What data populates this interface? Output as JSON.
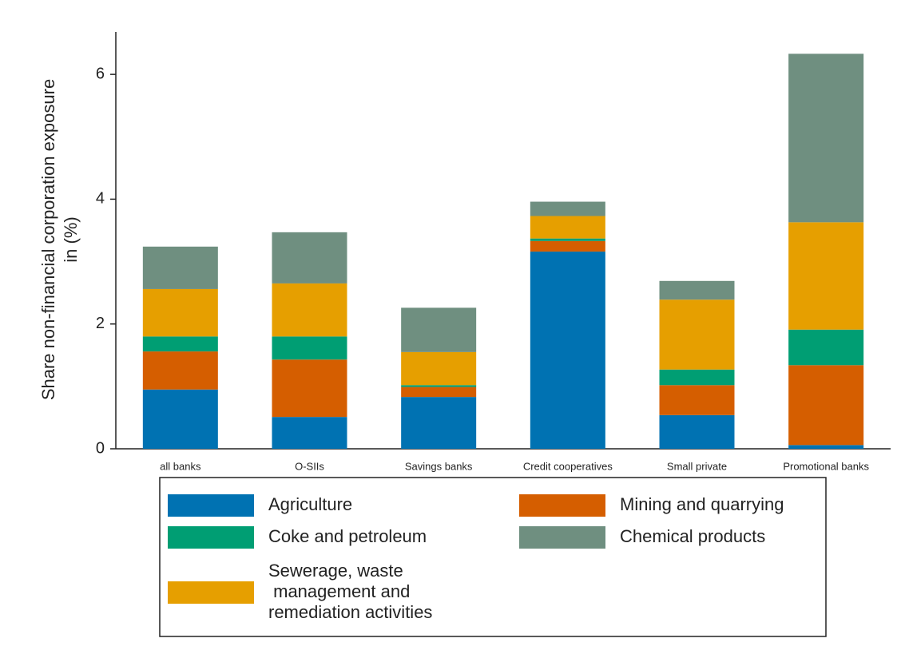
{
  "chart_data": {
    "type": "stacked_bar",
    "y_label": [
      "Share non-financial corporation exposure",
      "in (%)"
    ],
    "categories": [
      "all banks",
      "O-SIIs",
      "Savings banks",
      "Credit cooperatives",
      "Small private",
      "Promotional banks"
    ],
    "series": [
      {
        "name": "Agriculture",
        "color": "#0072b2",
        "values": [
          0.95,
          0.51,
          0.83,
          3.16,
          0.54,
          0.06
        ]
      },
      {
        "name": "Mining and quarrying",
        "color": "#d55e00",
        "values": [
          0.61,
          0.92,
          0.16,
          0.17,
          0.48,
          1.28
        ]
      },
      {
        "name": "Coke and petroleum",
        "color": "#009e73",
        "values": [
          0.24,
          0.37,
          0.03,
          0.04,
          0.25,
          0.57
        ]
      },
      {
        "name": "Sewerage, waste\n management and\nremediation activities",
        "color": "#e69f00",
        "values": [
          0.76,
          0.85,
          0.53,
          0.36,
          1.12,
          1.72
        ]
      },
      {
        "name": "Chemical products",
        "color": "#6f8f80",
        "values": [
          0.68,
          0.82,
          0.71,
          0.23,
          0.3,
          2.7
        ]
      }
    ],
    "ylim": [
      0,
      6.68
    ],
    "yticks": [
      0,
      2,
      4,
      6
    ]
  }
}
